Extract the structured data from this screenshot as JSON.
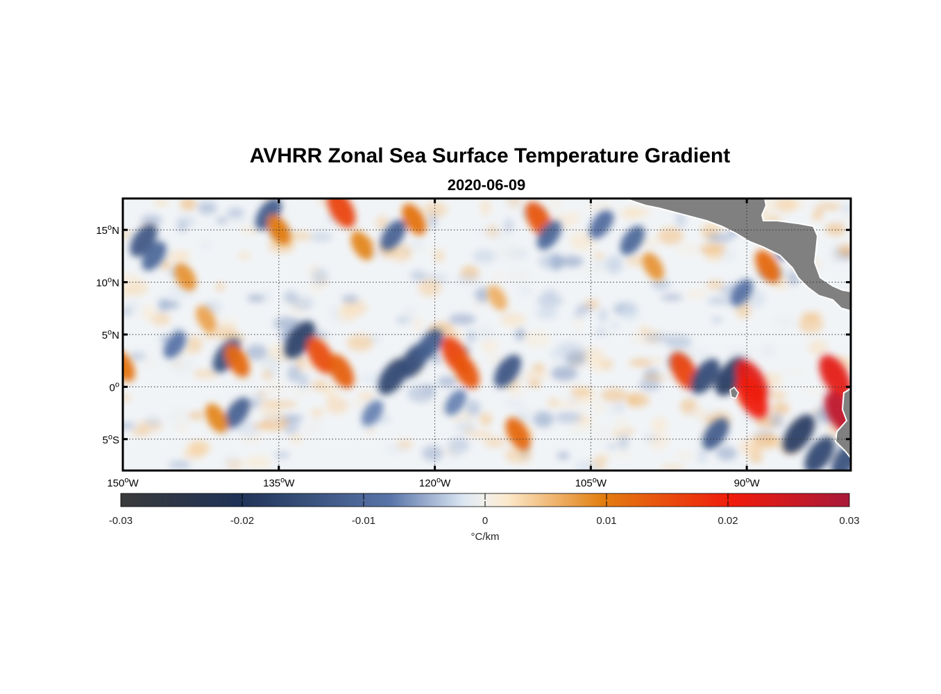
{
  "figure": {
    "title": "AVHRR Zonal Sea Surface Temperature Gradient",
    "date": "2020-06-09"
  },
  "map": {
    "lon_range": [
      -150,
      -80
    ],
    "lat_range": [
      -8,
      18
    ],
    "lon_ticks": [
      {
        "value": -150,
        "deg": "150",
        "hemi": "W"
      },
      {
        "value": -135,
        "deg": "135",
        "hemi": "W"
      },
      {
        "value": -120,
        "deg": "120",
        "hemi": "W"
      },
      {
        "value": -105,
        "deg": "105",
        "hemi": "W"
      },
      {
        "value": -90,
        "deg": "90",
        "hemi": "W"
      }
    ],
    "lat_ticks": [
      {
        "value": 15,
        "deg": "15",
        "hemi": "N"
      },
      {
        "value": 10,
        "deg": "10",
        "hemi": "N"
      },
      {
        "value": 5,
        "deg": "5",
        "hemi": "N"
      },
      {
        "value": 0,
        "deg": "0",
        "hemi": ""
      },
      {
        "value": -5,
        "deg": "5",
        "hemi": "S"
      }
    ],
    "grid": "dotted",
    "land_color": "#808080",
    "features": [
      {
        "lon": -150,
        "lat": 2.0,
        "v": 0.011
      },
      {
        "lon": -148,
        "lat": 14.0,
        "v": -0.013
      },
      {
        "lon": -147,
        "lat": 12.5,
        "v": -0.01
      },
      {
        "lon": -145,
        "lat": 4.0,
        "v": -0.008
      },
      {
        "lon": -144,
        "lat": 10.5,
        "v": 0.008
      },
      {
        "lon": -142,
        "lat": 6.5,
        "v": 0.007
      },
      {
        "lon": -140,
        "lat": 3.0,
        "v": -0.014
      },
      {
        "lon": -139,
        "lat": 2.5,
        "v": 0.012
      },
      {
        "lon": -139,
        "lat": -2.5,
        "v": -0.011
      },
      {
        "lon": -141,
        "lat": -3.0,
        "v": 0.009
      },
      {
        "lon": -136,
        "lat": 16.5,
        "v": -0.012
      },
      {
        "lon": -135,
        "lat": 15.0,
        "v": 0.01
      },
      {
        "lon": -133,
        "lat": 4.5,
        "v": -0.017
      },
      {
        "lon": -131,
        "lat": 3.0,
        "v": 0.015
      },
      {
        "lon": -129,
        "lat": 1.5,
        "v": 0.013
      },
      {
        "lon": -129,
        "lat": 17.0,
        "v": 0.016
      },
      {
        "lon": -127,
        "lat": 13.5,
        "v": 0.009
      },
      {
        "lon": -126,
        "lat": -2.5,
        "v": -0.007
      },
      {
        "lon": -124,
        "lat": 1.0,
        "v": -0.016
      },
      {
        "lon": -122,
        "lat": 2.5,
        "v": -0.015
      },
      {
        "lon": -120.5,
        "lat": 4.0,
        "v": -0.012
      },
      {
        "lon": -124,
        "lat": 14.5,
        "v": -0.011
      },
      {
        "lon": -122,
        "lat": 16.0,
        "v": 0.011
      },
      {
        "lon": -118,
        "lat": 3.0,
        "v": 0.016
      },
      {
        "lon": -117,
        "lat": 1.5,
        "v": 0.014
      },
      {
        "lon": -118,
        "lat": -1.5,
        "v": -0.007
      },
      {
        "lon": -114,
        "lat": 8.5,
        "v": 0.006
      },
      {
        "lon": -113,
        "lat": 1.5,
        "v": -0.013
      },
      {
        "lon": -112,
        "lat": -4.5,
        "v": 0.012
      },
      {
        "lon": -110,
        "lat": 16.0,
        "v": 0.014
      },
      {
        "lon": -109,
        "lat": 14.5,
        "v": -0.01
      },
      {
        "lon": -104,
        "lat": 15.5,
        "v": -0.009
      },
      {
        "lon": -101,
        "lat": 14.0,
        "v": -0.01
      },
      {
        "lon": -99,
        "lat": 11.5,
        "v": 0.008
      },
      {
        "lon": -96,
        "lat": 1.5,
        "v": 0.016
      },
      {
        "lon": -94,
        "lat": 1.0,
        "v": -0.015
      },
      {
        "lon": -93,
        "lat": -4.5,
        "v": -0.012
      },
      {
        "lon": -91.5,
        "lat": 1.0,
        "v": -0.018
      },
      {
        "lon": -89.5,
        "lat": 0.5,
        "v": 0.022
      },
      {
        "lon": -89.5,
        "lat": -1.0,
        "v": 0.02
      },
      {
        "lon": -90.5,
        "lat": 9.0,
        "v": -0.008
      },
      {
        "lon": -88,
        "lat": 11.5,
        "v": 0.012
      },
      {
        "lon": -86,
        "lat": 13.5,
        "v": -0.009
      },
      {
        "lon": -85,
        "lat": -4.5,
        "v": -0.018
      },
      {
        "lon": -83,
        "lat": -6.5,
        "v": -0.016
      },
      {
        "lon": -81.5,
        "lat": 1.0,
        "v": 0.022
      },
      {
        "lon": -81,
        "lat": -2.5,
        "v": 0.027
      },
      {
        "lon": -80.5,
        "lat": -7.0,
        "v": -0.014
      }
    ]
  },
  "colorbar": {
    "range": [
      -0.03,
      0.03
    ],
    "ticks": [
      "-0.03",
      "-0.02",
      "-0.01",
      "0",
      "0.01",
      "0.02",
      "0.03"
    ],
    "label": "°C/km",
    "colors": [
      "#3a3a3a",
      "#1f3256",
      "#5874a8",
      "#dbe6f2",
      "#f2f0ea",
      "#fce9cc",
      "#e27f10",
      "#f01a0c",
      "#a8193a"
    ]
  }
}
